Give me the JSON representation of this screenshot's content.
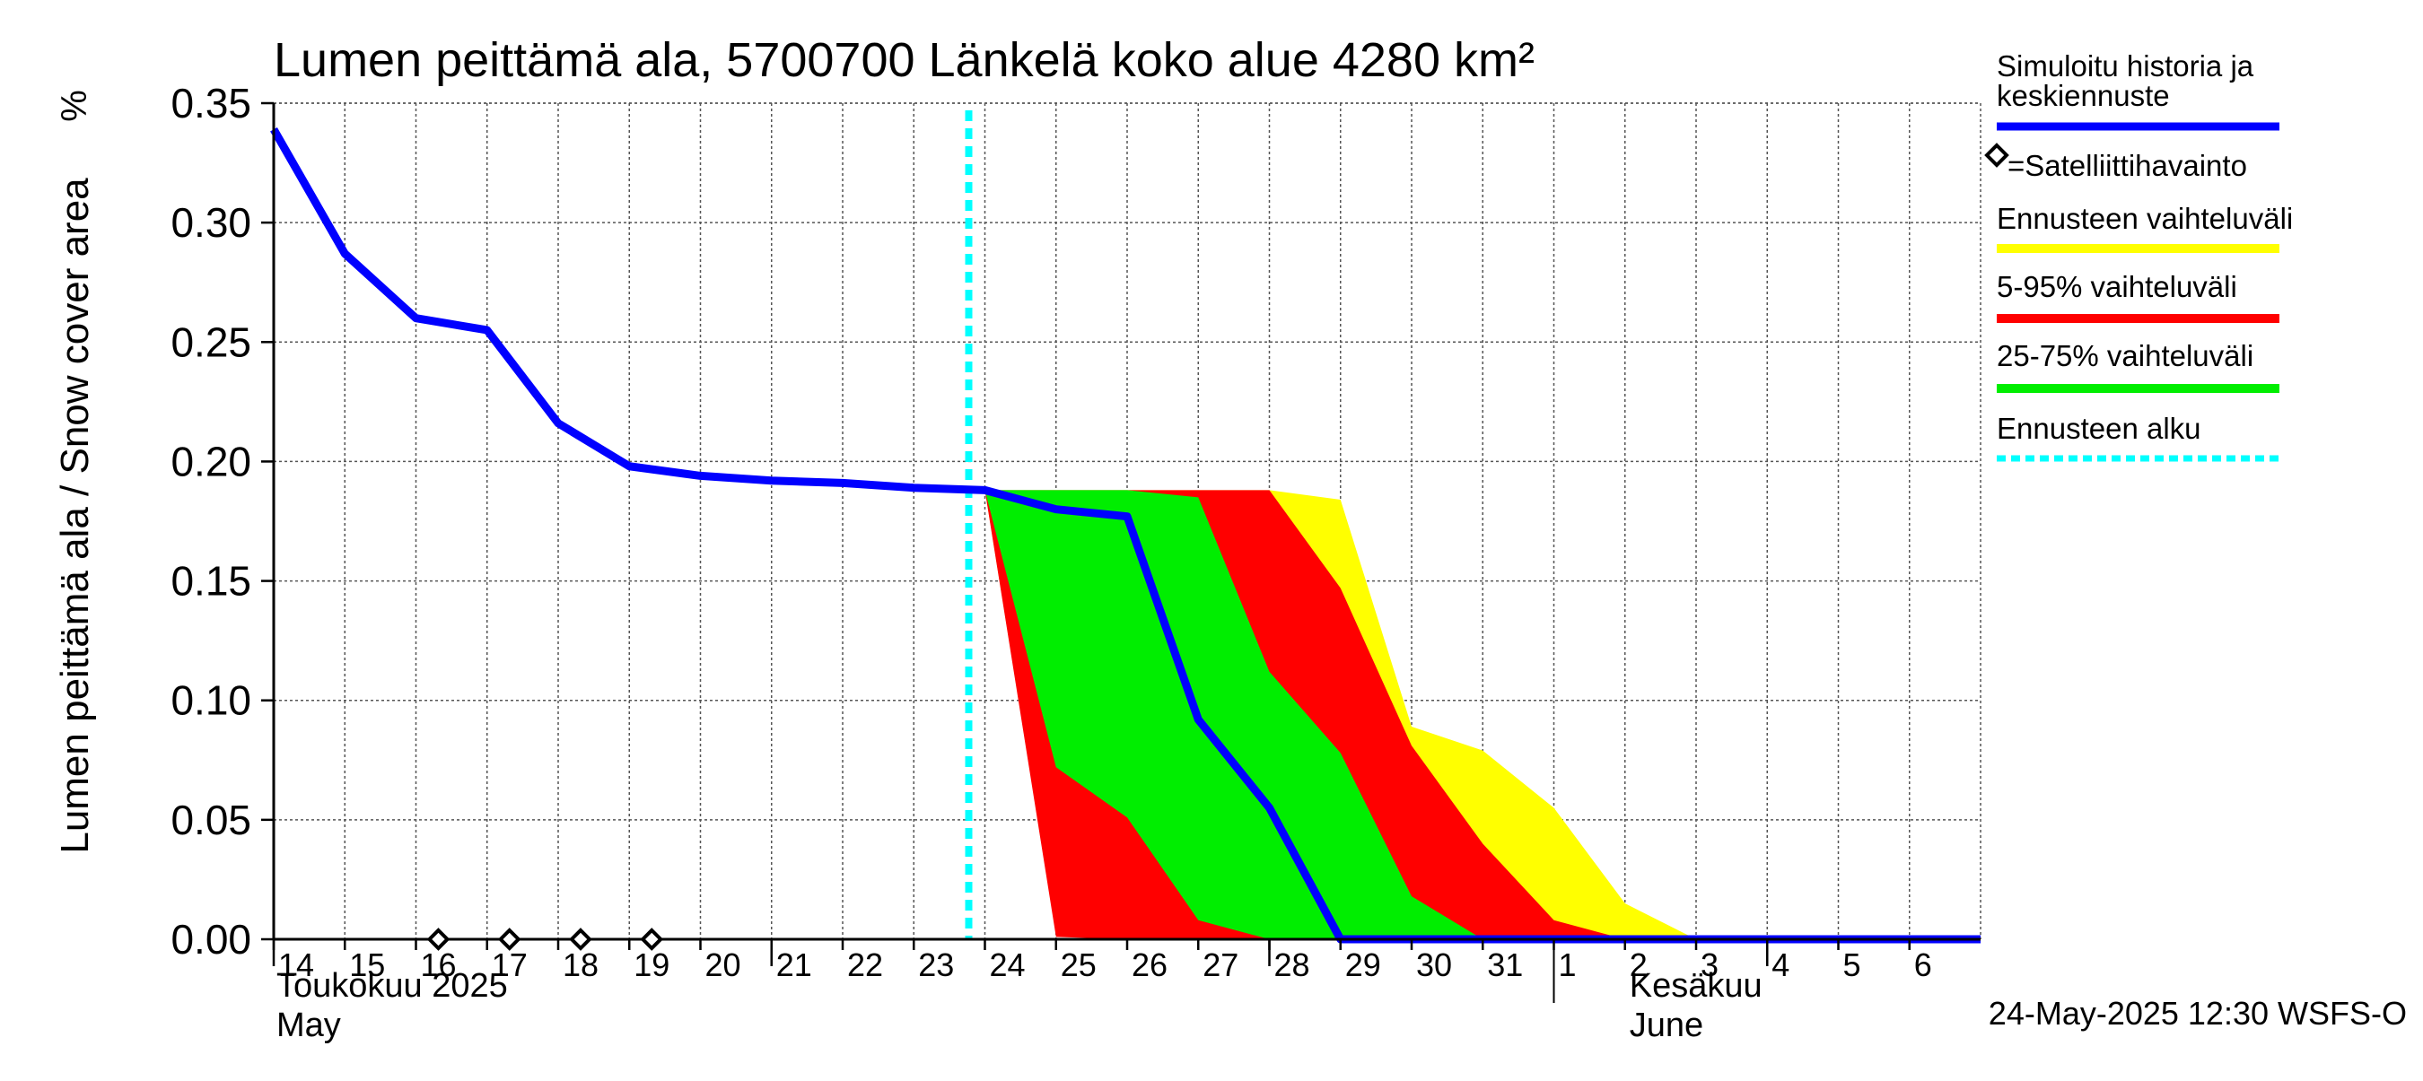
{
  "chart_data": {
    "type": "area",
    "title": "Lumen peittämä ala, 5700700 Länkelä koko alue 4280 km²",
    "ylabel": "Lumen peittämä ala / Snow cover area",
    "yunit": "%",
    "ylim": [
      0,
      0.35
    ],
    "yticks": [
      "0.00",
      "0.05",
      "0.10",
      "0.15",
      "0.20",
      "0.25",
      "0.30",
      "0.35"
    ],
    "x_start": "2025-05-14",
    "x_end": "2025-06-07",
    "xtick_labels": [
      "14",
      "15",
      "16",
      "17",
      "18",
      "19",
      "20",
      "21",
      "22",
      "23",
      "24",
      "25",
      "26",
      "27",
      "28",
      "29",
      "30",
      "31",
      "1",
      "2",
      "3",
      "4",
      "5",
      "6"
    ],
    "month_labels": [
      {
        "fi": "Toukokuu  2025",
        "en": "May"
      },
      {
        "fi": "Kesäkuu",
        "en": "June"
      }
    ],
    "grid": true,
    "forecast_start": "2025-05-24",
    "timestamp": "24-May-2025 12:30 WSFS-O",
    "legend_position": "right",
    "legend": [
      {
        "label": "Simuloitu historia ja keskiennuste",
        "color": "#0000ff",
        "style": "line"
      },
      {
        "label": "=Satelliittihavainto",
        "color": "#000000",
        "style": "diamond"
      },
      {
        "label": "Ennusteen vaihteluväli",
        "color": "#ffff00",
        "style": "line"
      },
      {
        "label": "5-95% vaihteluväli",
        "color": "#ff0000",
        "style": "line"
      },
      {
        "label": "25-75% vaihteluväli",
        "color": "#00ee00",
        "style": "line"
      },
      {
        "label": "Ennusteen alku",
        "color": "#00ffff",
        "style": "dashed"
      }
    ],
    "series": [
      {
        "name": "Simuloitu historia ja keskiennuste",
        "color": "#0000ff",
        "points": [
          [
            "2025-05-14",
            0.339
          ],
          [
            "2025-05-15",
            0.287
          ],
          [
            "2025-05-16",
            0.26
          ],
          [
            "2025-05-17",
            0.255
          ],
          [
            "2025-05-18",
            0.216
          ],
          [
            "2025-05-19",
            0.198
          ],
          [
            "2025-05-20",
            0.194
          ],
          [
            "2025-05-21",
            0.192
          ],
          [
            "2025-05-22",
            0.191
          ],
          [
            "2025-05-23",
            0.189
          ],
          [
            "2025-05-24",
            0.188
          ],
          [
            "2025-05-25",
            0.18
          ],
          [
            "2025-05-26",
            0.177
          ],
          [
            "2025-05-27",
            0.092
          ],
          [
            "2025-05-28",
            0.055
          ],
          [
            "2025-05-29",
            0.0
          ],
          [
            "2025-06-07",
            0.0
          ]
        ]
      },
      {
        "name": "Ennusteen vaihteluväli",
        "color": "#ffff00",
        "upper": [
          [
            "2025-05-24",
            0.188
          ],
          [
            "2025-05-25",
            0.188
          ],
          [
            "2025-05-26",
            0.188
          ],
          [
            "2025-05-27",
            0.188
          ],
          [
            "2025-05-28",
            0.188
          ],
          [
            "2025-05-29",
            0.184
          ],
          [
            "2025-05-30",
            0.089
          ],
          [
            "2025-05-31",
            0.079
          ],
          [
            "2025-06-01",
            0.055
          ],
          [
            "2025-06-02",
            0.015
          ],
          [
            "2025-06-03",
            0.0
          ],
          [
            "2025-06-07",
            0.0
          ]
        ],
        "lower": [
          [
            "2025-05-24",
            0.188
          ],
          [
            "2025-05-25",
            0.003
          ],
          [
            "2025-05-26",
            0.0
          ],
          [
            "2025-06-07",
            0.0
          ]
        ]
      },
      {
        "name": "5-95% vaihteluväli",
        "color": "#ff0000",
        "upper": [
          [
            "2025-05-24",
            0.188
          ],
          [
            "2025-05-25",
            0.188
          ],
          [
            "2025-05-26",
            0.188
          ],
          [
            "2025-05-27",
            0.188
          ],
          [
            "2025-05-28",
            0.188
          ],
          [
            "2025-05-29",
            0.147
          ],
          [
            "2025-05-30",
            0.081
          ],
          [
            "2025-05-31",
            0.04
          ],
          [
            "2025-06-01",
            0.008
          ],
          [
            "2025-06-02",
            0.0
          ],
          [
            "2025-06-07",
            0.0
          ]
        ],
        "lower": [
          [
            "2025-05-24",
            0.188
          ],
          [
            "2025-05-25",
            0.001
          ],
          [
            "2025-05-26",
            0.0
          ],
          [
            "2025-06-07",
            0.0
          ]
        ]
      },
      {
        "name": "25-75% vaihteluväli",
        "color": "#00ee00",
        "upper": [
          [
            "2025-05-24",
            0.188
          ],
          [
            "2025-05-25",
            0.188
          ],
          [
            "2025-05-26",
            0.188
          ],
          [
            "2025-05-27",
            0.185
          ],
          [
            "2025-05-28",
            0.112
          ],
          [
            "2025-05-29",
            0.078
          ],
          [
            "2025-05-30",
            0.018
          ],
          [
            "2025-05-31",
            0.0
          ],
          [
            "2025-06-07",
            0.0
          ]
        ],
        "lower": [
          [
            "2025-05-24",
            0.188
          ],
          [
            "2025-05-25",
            0.072
          ],
          [
            "2025-05-26",
            0.051
          ],
          [
            "2025-05-27",
            0.008
          ],
          [
            "2025-05-28",
            0.0
          ],
          [
            "2025-06-07",
            0.0
          ]
        ]
      }
    ],
    "observations": [
      [
        "2025-05-16",
        0.0
      ],
      [
        "2025-05-17",
        0.0
      ],
      [
        "2025-05-18",
        0.0
      ],
      [
        "2025-05-19",
        0.0
      ]
    ]
  }
}
